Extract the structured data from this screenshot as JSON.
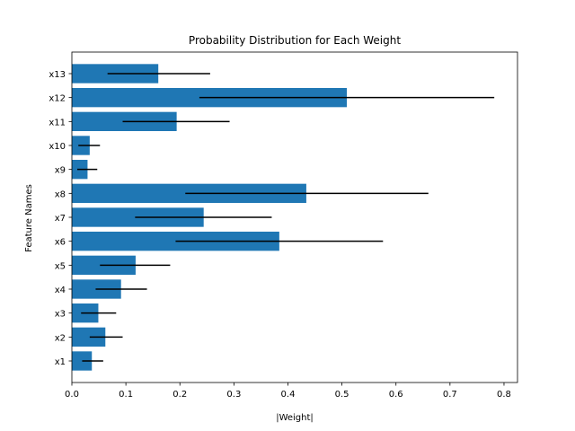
{
  "chart_data": {
    "type": "bar",
    "orientation": "horizontal",
    "title": "Probability Distribution for Each Weight",
    "xlabel": "|Weight|",
    "ylabel": "Feature Names",
    "categories": [
      "x1",
      "x2",
      "x3",
      "x4",
      "x5",
      "x6",
      "x7",
      "x8",
      "x9",
      "x10",
      "x11",
      "x12",
      "x13"
    ],
    "values": [
      0.037,
      0.062,
      0.049,
      0.091,
      0.118,
      0.384,
      0.244,
      0.434,
      0.029,
      0.033,
      0.194,
      0.509,
      0.16
    ],
    "error_low": [
      0.019,
      0.033,
      0.017,
      0.044,
      0.052,
      0.192,
      0.117,
      0.21,
      0.01,
      0.012,
      0.094,
      0.236,
      0.066
    ],
    "error_high": [
      0.058,
      0.094,
      0.082,
      0.139,
      0.182,
      0.576,
      0.37,
      0.66,
      0.047,
      0.052,
      0.292,
      0.782,
      0.256
    ],
    "xlim": [
      0,
      0.825
    ],
    "xticks": [
      "0.0",
      "0.1",
      "0.2",
      "0.3",
      "0.4",
      "0.5",
      "0.6",
      "0.7",
      "0.8"
    ],
    "bar_color": "#1f77b4",
    "error_color": "#000000",
    "grid": false,
    "legend": "none"
  }
}
